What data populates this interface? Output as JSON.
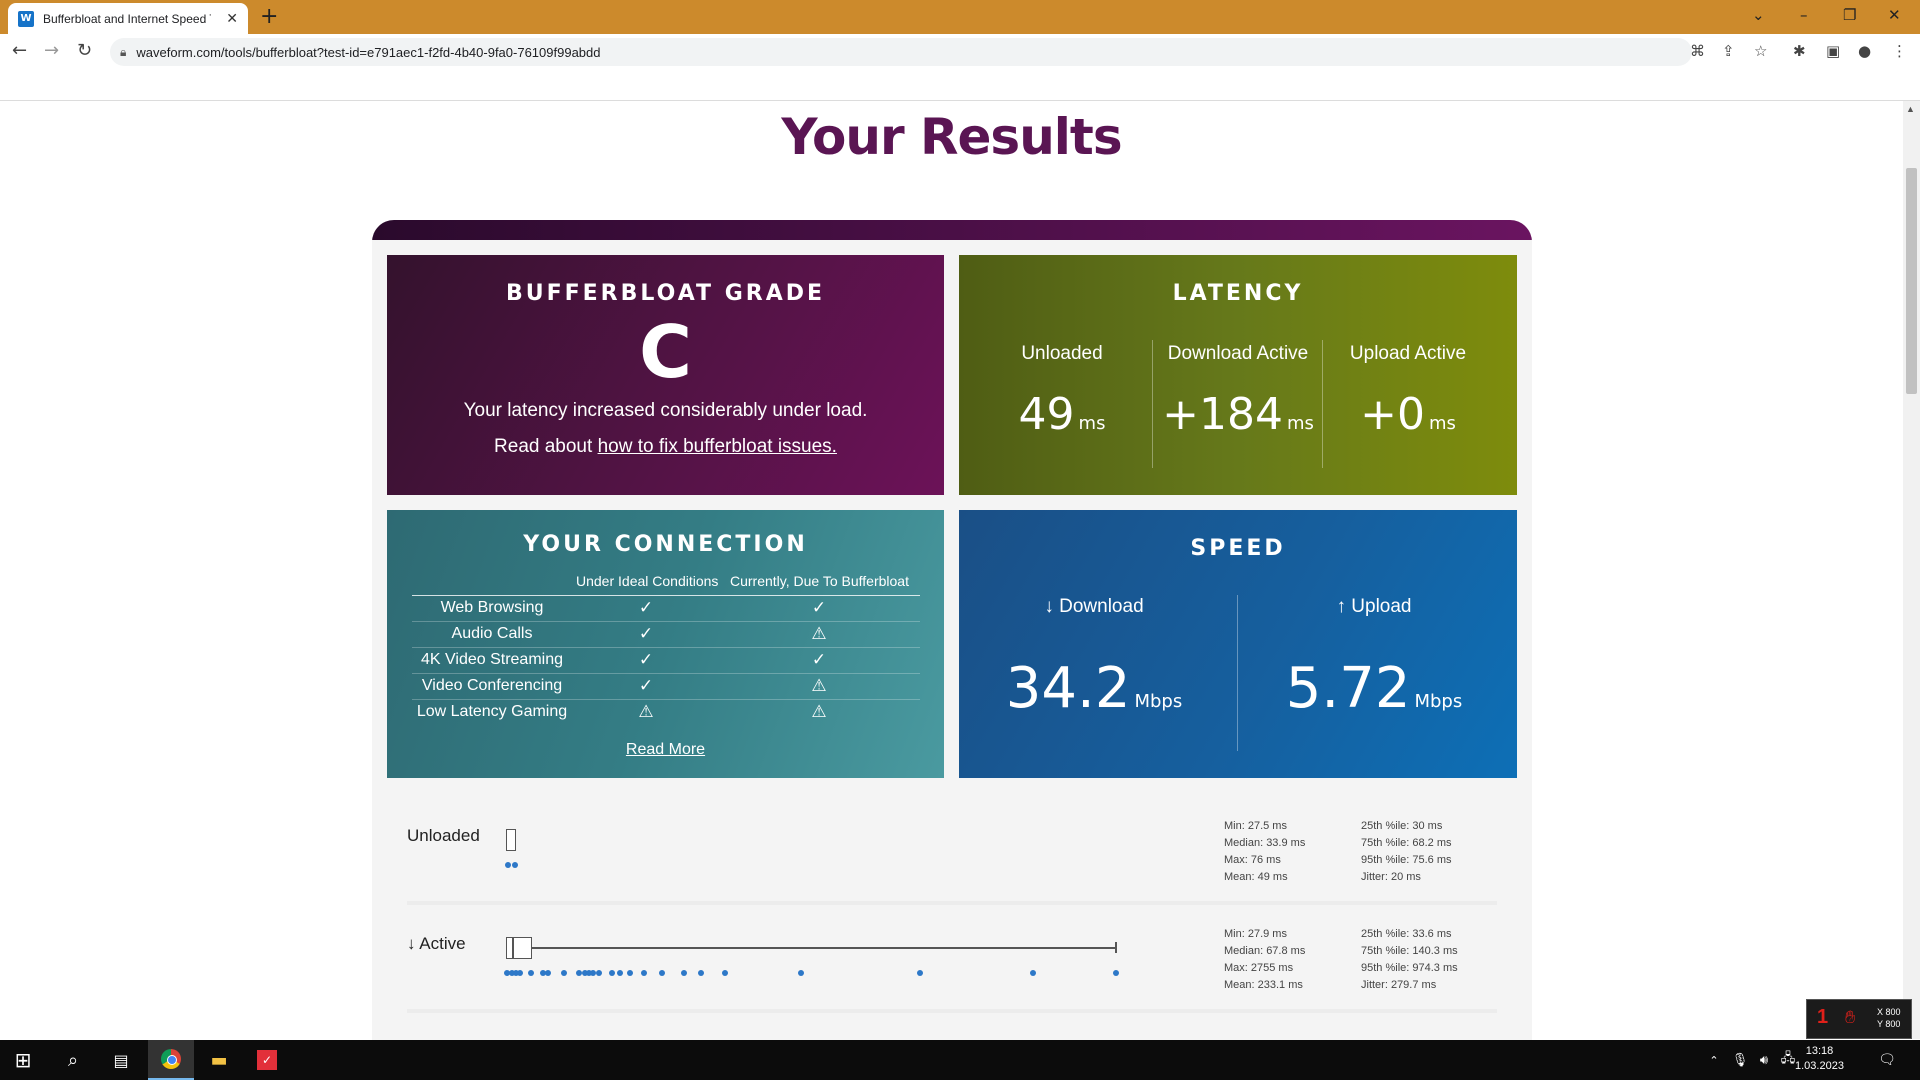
{
  "browser": {
    "tab_title": "Bufferbloat and Internet Speed Test - Waveform",
    "tab_close": "✕",
    "new_tab": "+",
    "url": "waveform.com/tools/bufferbloat?test-id=e791aec1-f2fd-4b40-9fa0-76109f99abdd",
    "favicon_text": "W"
  },
  "page": {
    "title": "Your Results"
  },
  "grade": {
    "heading": "BUFFERBLOAT GRADE",
    "letter": "C",
    "description": "Your latency increased considerably under load.",
    "read_prefix": "Read about ",
    "read_link": "how to fix bufferbloat issues."
  },
  "latency": {
    "heading": "LATENCY",
    "unloaded_label": "Unloaded",
    "unloaded_value": "49",
    "download_label": "Download Active",
    "download_value": "+184",
    "upload_label": "Upload Active",
    "upload_value": "+0",
    "unit": "ms"
  },
  "connection": {
    "heading": "YOUR CONNECTION",
    "col_ideal": "Under Ideal Conditions",
    "col_current": "Currently, Due To Bufferbloat",
    "rows": [
      {
        "name": "Web Browsing",
        "ideal": "check",
        "current": "check"
      },
      {
        "name": "Audio Calls",
        "ideal": "check",
        "current": "warning"
      },
      {
        "name": "4K Video Streaming",
        "ideal": "check",
        "current": "check"
      },
      {
        "name": "Video Conferencing",
        "ideal": "check",
        "current": "warning"
      },
      {
        "name": "Low Latency Gaming",
        "ideal": "warning",
        "current": "warning"
      }
    ],
    "read_more": "Read More"
  },
  "speed": {
    "heading": "SPEED",
    "download_label": "↓ Download",
    "download_value": "34.2",
    "upload_label": "↑ Upload",
    "upload_value": "5.72",
    "unit": "Mbps"
  },
  "charts": {
    "unloaded": {
      "label": "Unloaded",
      "stats_left": [
        "Min: 27.5 ms",
        "Median: 33.9 ms",
        "Max: 76 ms",
        "Mean: 49 ms"
      ],
      "stats_right": [
        "25th %ile: 30 ms",
        "75th %ile: 68.2 ms",
        "95th %ile: 75.6 ms",
        "Jitter: 20 ms"
      ]
    },
    "download_active": {
      "label": "↓ Active",
      "stats_left": [
        "Min: 27.9 ms",
        "Median: 67.8 ms",
        "Max: 2755 ms",
        "Mean: 233.1 ms"
      ],
      "stats_right": [
        "25th %ile: 33.6 ms",
        "75th %ile: 140.3 ms",
        "95th %ile: 974.3 ms",
        "Jitter: 279.7 ms"
      ]
    }
  },
  "taskbar": {
    "time": "13:18",
    "date": "1.03.2023"
  },
  "overlay": {
    "x": "X 800",
    "y": "Y 800"
  }
}
